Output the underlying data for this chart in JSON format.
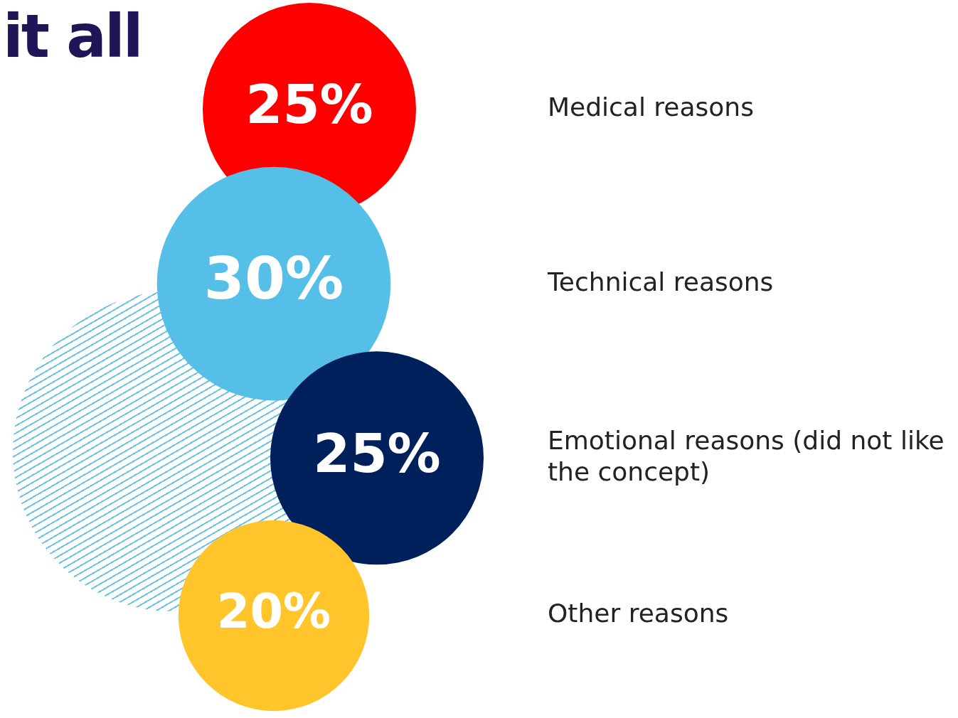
{
  "chart_data": {
    "type": "other",
    "title": "it all",
    "categories": [
      "Medical reasons",
      "Technical reasons",
      "Emotional reasons (did not like the concept)",
      "Other reasons"
    ],
    "values": [
      25,
      30,
      25,
      20
    ],
    "colors": [
      "#ff0000",
      "#55bfe8",
      "#00205b",
      "#ffc52a"
    ],
    "value_labels": [
      "25%",
      "30%",
      "25%",
      "20%"
    ]
  }
}
